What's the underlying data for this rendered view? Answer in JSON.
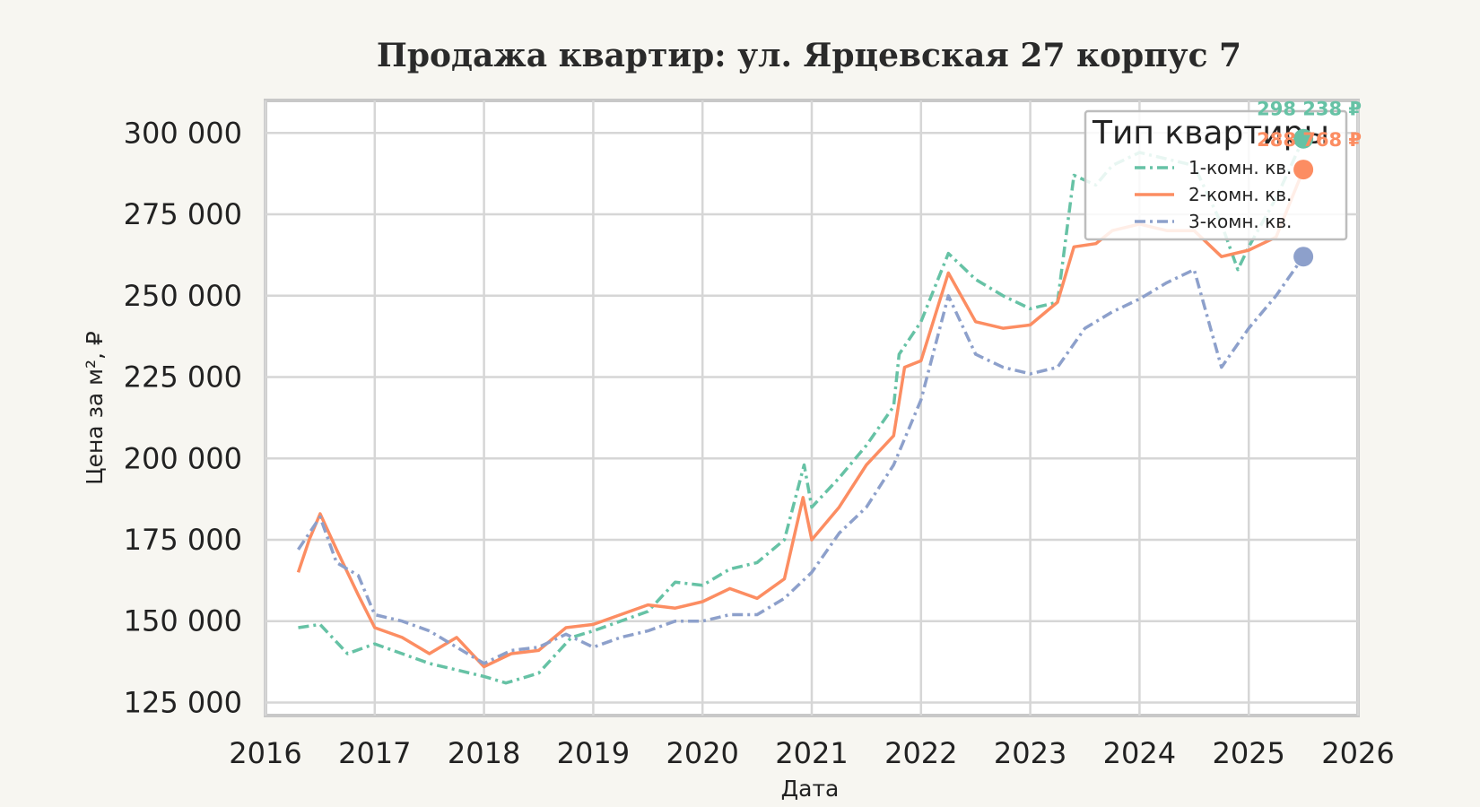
{
  "chart_data": {
    "type": "line",
    "title": "Продажа квартир: ул. Ярцевская 27 корпус 7",
    "xlabel": "Дата",
    "ylabel": "Цена за м², ₽",
    "xlim": [
      2016,
      2026
    ],
    "ylim": [
      121000,
      310000
    ],
    "x_ticks": [
      "2016",
      "2017",
      "2018",
      "2019",
      "2020",
      "2021",
      "2022",
      "2023",
      "2024",
      "2025",
      "2026"
    ],
    "y_ticks": [
      "125 000",
      "150 000",
      "175 000",
      "200 000",
      "225 000",
      "250 000",
      "275 000",
      "300 000"
    ],
    "grid": true,
    "legend": {
      "title": "Тип квартиры",
      "position": "top-right"
    },
    "series": [
      {
        "name": "1-комн. кв.",
        "color": "#66c2a5",
        "dash": "dashdot",
        "end_label": "298 238 ₽",
        "points": [
          [
            2016.3,
            148000
          ],
          [
            2016.5,
            149000
          ],
          [
            2016.75,
            140000
          ],
          [
            2017.0,
            143000
          ],
          [
            2017.5,
            137000
          ],
          [
            2018.0,
            133000
          ],
          [
            2018.2,
            131000
          ],
          [
            2018.5,
            134000
          ],
          [
            2018.8,
            145000
          ],
          [
            2019.0,
            147000
          ],
          [
            2019.5,
            153000
          ],
          [
            2019.75,
            162000
          ],
          [
            2020.0,
            161000
          ],
          [
            2020.25,
            166000
          ],
          [
            2020.5,
            168000
          ],
          [
            2020.75,
            175000
          ],
          [
            2020.93,
            198000
          ],
          [
            2021.0,
            185000
          ],
          [
            2021.25,
            194000
          ],
          [
            2021.5,
            204000
          ],
          [
            2021.75,
            216000
          ],
          [
            2021.8,
            232000
          ],
          [
            2022.0,
            242000
          ],
          [
            2022.25,
            263000
          ],
          [
            2022.5,
            255000
          ],
          [
            2022.75,
            250000
          ],
          [
            2023.0,
            246000
          ],
          [
            2023.25,
            248000
          ],
          [
            2023.4,
            287000
          ],
          [
            2023.6,
            284000
          ],
          [
            2023.75,
            290000
          ],
          [
            2024.0,
            294000
          ],
          [
            2024.25,
            292000
          ],
          [
            2024.5,
            290000
          ],
          [
            2024.75,
            272000
          ],
          [
            2024.9,
            258000
          ],
          [
            2025.0,
            265000
          ],
          [
            2025.25,
            280000
          ],
          [
            2025.5,
            298238
          ]
        ]
      },
      {
        "name": "2-комн. кв.",
        "color": "#fc8d62",
        "dash": "solid",
        "end_label": "288 768 ₽",
        "points": [
          [
            2016.3,
            165000
          ],
          [
            2016.4,
            175000
          ],
          [
            2016.5,
            183000
          ],
          [
            2016.65,
            172000
          ],
          [
            2016.85,
            158000
          ],
          [
            2017.0,
            148000
          ],
          [
            2017.25,
            145000
          ],
          [
            2017.5,
            140000
          ],
          [
            2017.75,
            145000
          ],
          [
            2018.0,
            136000
          ],
          [
            2018.25,
            140000
          ],
          [
            2018.5,
            141000
          ],
          [
            2018.75,
            148000
          ],
          [
            2019.0,
            149000
          ],
          [
            2019.5,
            155000
          ],
          [
            2019.75,
            154000
          ],
          [
            2020.0,
            156000
          ],
          [
            2020.25,
            160000
          ],
          [
            2020.5,
            157000
          ],
          [
            2020.75,
            163000
          ],
          [
            2020.92,
            188000
          ],
          [
            2021.0,
            175000
          ],
          [
            2021.25,
            185000
          ],
          [
            2021.5,
            198000
          ],
          [
            2021.75,
            207000
          ],
          [
            2021.85,
            228000
          ],
          [
            2022.0,
            230000
          ],
          [
            2022.25,
            257000
          ],
          [
            2022.5,
            242000
          ],
          [
            2022.75,
            240000
          ],
          [
            2023.0,
            241000
          ],
          [
            2023.25,
            248000
          ],
          [
            2023.4,
            265000
          ],
          [
            2023.6,
            266000
          ],
          [
            2023.75,
            270000
          ],
          [
            2024.0,
            272000
          ],
          [
            2024.25,
            270000
          ],
          [
            2024.5,
            270000
          ],
          [
            2024.75,
            262000
          ],
          [
            2025.0,
            264000
          ],
          [
            2025.25,
            268000
          ],
          [
            2025.5,
            288768
          ]
        ]
      },
      {
        "name": "3-комн. кв.",
        "color": "#8da0cb",
        "dash": "dashdot",
        "end_label": "",
        "points": [
          [
            2016.3,
            172000
          ],
          [
            2016.5,
            182000
          ],
          [
            2016.65,
            168000
          ],
          [
            2016.85,
            164000
          ],
          [
            2017.0,
            152000
          ],
          [
            2017.25,
            150000
          ],
          [
            2017.5,
            147000
          ],
          [
            2017.75,
            142000
          ],
          [
            2018.0,
            137000
          ],
          [
            2018.25,
            141000
          ],
          [
            2018.5,
            142000
          ],
          [
            2018.75,
            146000
          ],
          [
            2019.0,
            142000
          ],
          [
            2019.25,
            145000
          ],
          [
            2019.5,
            147000
          ],
          [
            2019.75,
            150000
          ],
          [
            2020.0,
            150000
          ],
          [
            2020.25,
            152000
          ],
          [
            2020.5,
            152000
          ],
          [
            2020.75,
            157000
          ],
          [
            2021.0,
            165000
          ],
          [
            2021.25,
            177000
          ],
          [
            2021.5,
            185000
          ],
          [
            2021.75,
            198000
          ],
          [
            2022.0,
            218000
          ],
          [
            2022.25,
            250000
          ],
          [
            2022.5,
            232000
          ],
          [
            2022.75,
            228000
          ],
          [
            2023.0,
            226000
          ],
          [
            2023.25,
            228000
          ],
          [
            2023.5,
            240000
          ],
          [
            2023.75,
            245000
          ],
          [
            2024.0,
            249000
          ],
          [
            2024.25,
            254000
          ],
          [
            2024.5,
            258000
          ],
          [
            2024.65,
            240000
          ],
          [
            2024.75,
            228000
          ],
          [
            2025.0,
            240000
          ],
          [
            2025.25,
            250000
          ],
          [
            2025.5,
            262000
          ]
        ]
      }
    ]
  }
}
